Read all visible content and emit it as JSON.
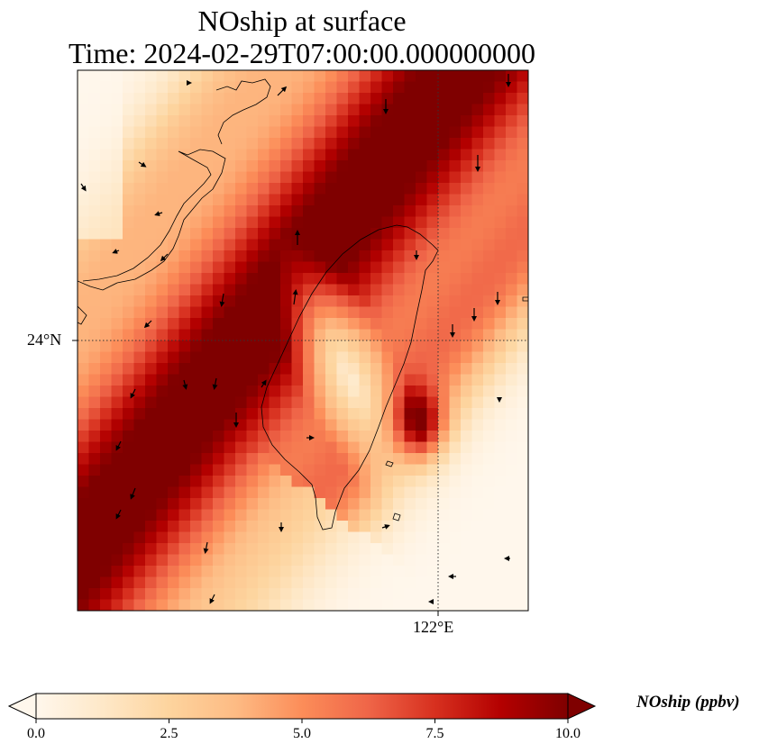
{
  "title": {
    "line1": "NOship at surface",
    "line2": "Time: 2024-02-29T07:00:00.000000000"
  },
  "axes": {
    "lat_label": "24°N",
    "lon_label": "122°E",
    "lat_grid_value": 24,
    "lon_grid_value": 122,
    "gridline_style": "dotted"
  },
  "map": {
    "variable": "NOship",
    "units": "ppbv",
    "region_features": [
      "Taiwan island coastline",
      "Fujian coastline",
      "offshore islands"
    ],
    "plume_orientation": "southwest-to-northeast band along Taiwan Strait",
    "max_region": "Taiwan Strait and mainland coast",
    "min_region": "central Taiwan interior and southeast ocean",
    "wind_vectors_shown": true
  },
  "colorbar": {
    "label": "NOship (ppbv)",
    "colormap": "OrRd",
    "ticks": [
      "0.0",
      "2.5",
      "5.0",
      "7.5",
      "10.0"
    ],
    "min": 0,
    "max": 10,
    "extend": "both",
    "colors": [
      "#fff7ec",
      "#fee8c8",
      "#fdd49e",
      "#fdbb84",
      "#fc8d59",
      "#ef6548",
      "#d7301f",
      "#b30000",
      "#7f0000"
    ]
  }
}
